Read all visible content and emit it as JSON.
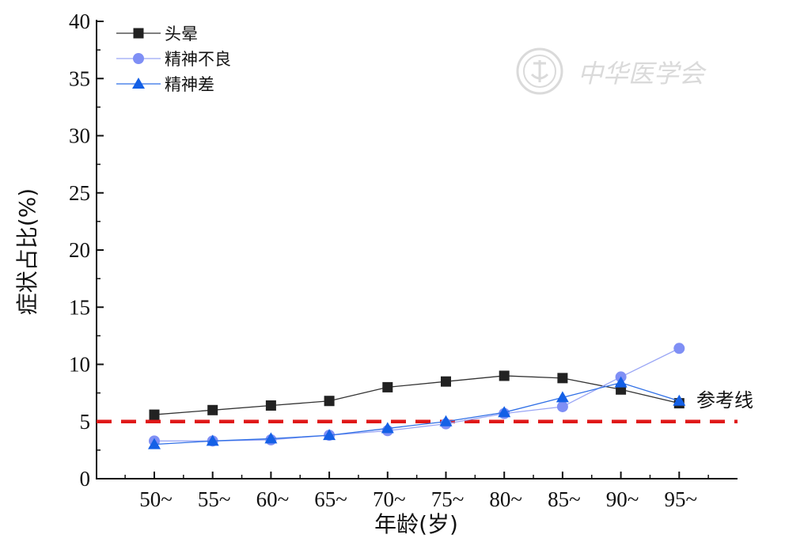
{
  "chart_data": {
    "type": "line",
    "categories": [
      "50~",
      "55~",
      "60~",
      "65~",
      "70~",
      "75~",
      "80~",
      "85~",
      "90~",
      "95~"
    ],
    "series": [
      {
        "name": "头晕",
        "values": [
          5.6,
          6.0,
          6.4,
          6.8,
          8.0,
          8.5,
          9.0,
          8.8,
          7.8,
          6.6
        ],
        "color": "#222222",
        "line_color": "#333333",
        "marker": "square"
      },
      {
        "name": "精神不良",
        "values": [
          3.3,
          3.3,
          3.4,
          3.8,
          4.2,
          4.8,
          5.7,
          6.3,
          8.9,
          11.4
        ],
        "color": "#7f8ff5",
        "line_color": "#9aa6f5",
        "marker": "circle"
      },
      {
        "name": "精神差",
        "values": [
          3.0,
          3.3,
          3.5,
          3.8,
          4.4,
          5.0,
          5.8,
          7.1,
          8.4,
          6.8
        ],
        "color": "#1460e6",
        "line_color": "#2f6fe6",
        "marker": "triangle"
      }
    ],
    "ylabel": "症状占比(%)",
    "xlabel": "年龄(岁)",
    "ylim": [
      0,
      40
    ],
    "yticks": [
      "0",
      "5",
      "10",
      "15",
      "20",
      "25",
      "30",
      "35",
      "40"
    ],
    "reference_line": {
      "value": 5,
      "label": "参考线",
      "color": "#e01818",
      "style": "dashed"
    },
    "legend_position": "top-left",
    "grid": false
  },
  "watermark": {
    "text": "中华医学会",
    "color": "#dadada"
  }
}
